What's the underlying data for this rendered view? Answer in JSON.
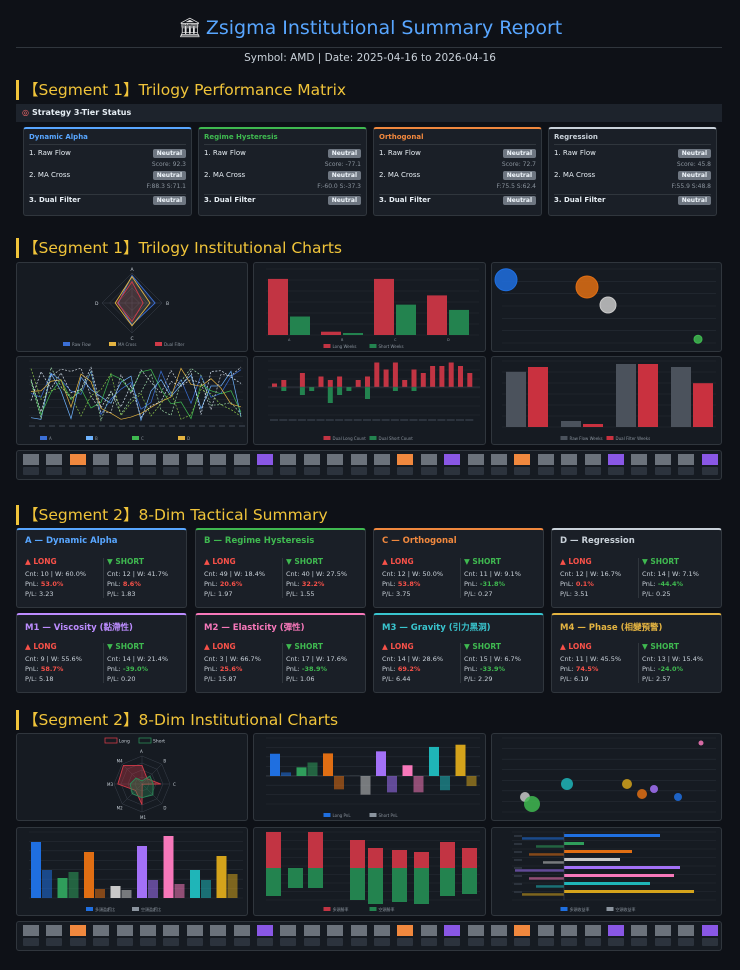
{
  "header": {
    "icon": "bank-building-icon",
    "title": "Zsigma Institutional Summary Report",
    "subtitle": "Symbol: AMD | Date: 2025-04-16 to 2026-04-16"
  },
  "sections": {
    "s1_matrix": "【Segment 1】Trilogy Performance Matrix",
    "s1_charts": "【Segment 1】Trilogy Institutional Charts",
    "s2_summary": "【Segment 2】8-Dim Tactical Summary",
    "s2_charts": "【Segment 2】8-Dim Institutional Charts"
  },
  "strategy_status": {
    "icon": "target-icon",
    "label": "Strategy 3-Tier Status"
  },
  "tier_cards": [
    {
      "name": "Dynamic Alpha",
      "color": "#58a6ff",
      "rows": [
        {
          "label": "1. Raw Flow",
          "badge": "Neutral",
          "sub": "Score: 92.3"
        },
        {
          "label": "2. MA Cross",
          "badge": "Neutral",
          "sub": "F:88.3 S:71.1"
        },
        {
          "label": "3. Dual Filter",
          "badge": "Neutral",
          "sub": ""
        }
      ]
    },
    {
      "name": "Regime Hysteresis",
      "color": "#3fb950",
      "rows": [
        {
          "label": "1. Raw Flow",
          "badge": "Neutral",
          "sub": "Score: -77.1"
        },
        {
          "label": "2. MA Cross",
          "badge": "Neutral",
          "sub": "F:-60.0 S:-37.3"
        },
        {
          "label": "3. Dual Filter",
          "badge": "Neutral",
          "sub": ""
        }
      ]
    },
    {
      "name": "Orthogonal",
      "color": "#f0883e",
      "rows": [
        {
          "label": "1. Raw Flow",
          "badge": "Neutral",
          "sub": "Score: 72.7"
        },
        {
          "label": "2. MA Cross",
          "badge": "Neutral",
          "sub": "F:75.5 S:62.4"
        },
        {
          "label": "3. Dual Filter",
          "badge": "Neutral",
          "sub": ""
        }
      ]
    },
    {
      "name": "Regression",
      "color": "#c9d1d9",
      "rows": [
        {
          "label": "1. Raw Flow",
          "badge": "Neutral",
          "sub": "Score: 45.8"
        },
        {
          "label": "2. MA Cross",
          "badge": "Neutral",
          "sub": "F:55.9 S:48.8"
        },
        {
          "label": "3. Dual Filter",
          "badge": "Neutral",
          "sub": ""
        }
      ]
    }
  ],
  "dim_cards": [
    {
      "name": "A — Dynamic Alpha",
      "color": "#58a6ff",
      "long": {
        "label": "▲ LONG",
        "cnt": "Cnt: 10 | W: 60.0%",
        "pnl": "53.0%",
        "pl": "P/L: 3.23"
      },
      "short": {
        "label": "▼ SHORT",
        "cnt": "Cnt: 12 | W: 41.7%",
        "pnl": "8.6%",
        "pl": "P/L: 1.83"
      }
    },
    {
      "name": "B — Regime Hysteresis",
      "color": "#3fb950",
      "long": {
        "label": "▲ LONG",
        "cnt": "Cnt: 49 | W: 18.4%",
        "pnl": "20.6%",
        "pl": "P/L: 1.97"
      },
      "short": {
        "label": "▼ SHORT",
        "cnt": "Cnt: 40 | W: 27.5%",
        "pnl": "32.2%",
        "pl": "P/L: 1.55"
      }
    },
    {
      "name": "C — Orthogonal",
      "color": "#f0883e",
      "long": {
        "label": "▲ LONG",
        "cnt": "Cnt: 12 | W: 50.0%",
        "pnl": "53.8%",
        "pl": "P/L: 3.75"
      },
      "short": {
        "label": "▼ SHORT",
        "cnt": "Cnt: 11 | W: 9.1%",
        "pnl": "-31.8%",
        "pl": "P/L: 0.27"
      }
    },
    {
      "name": "D — Regression",
      "color": "#c9d1d9",
      "long": {
        "label": "▲ LONG",
        "cnt": "Cnt: 12 | W: 16.7%",
        "pnl": "0.1%",
        "pl": "P/L: 3.51"
      },
      "short": {
        "label": "▼ SHORT",
        "cnt": "Cnt: 14 | W: 7.1%",
        "pnl": "-44.4%",
        "pl": "P/L: 0.25"
      }
    },
    {
      "name": "M1 — Viscosity (黏滯性)",
      "color": "#bc8cff",
      "long": {
        "label": "▲ LONG",
        "cnt": "Cnt: 9 | W: 55.6%",
        "pnl": "58.7%",
        "pl": "P/L: 5.18"
      },
      "short": {
        "label": "▼ SHORT",
        "cnt": "Cnt: 14 | W: 21.4%",
        "pnl": "-39.0%",
        "pl": "P/L: 0.20"
      }
    },
    {
      "name": "M2 — Elasticity (彈性)",
      "color": "#f778ba",
      "long": {
        "label": "▲ LONG",
        "cnt": "Cnt: 3 | W: 66.7%",
        "pnl": "25.6%",
        "pl": "P/L: 15.87"
      },
      "short": {
        "label": "▼ SHORT",
        "cnt": "Cnt: 17 | W: 17.6%",
        "pnl": "-38.9%",
        "pl": "P/L: 1.06"
      }
    },
    {
      "name": "M3 — Gravity (引力黑洞)",
      "color": "#39c5cf",
      "long": {
        "label": "▲ LONG",
        "cnt": "Cnt: 14 | W: 28.6%",
        "pnl": "69.2%",
        "pl": "P/L: 6.44"
      },
      "short": {
        "label": "▼ SHORT",
        "cnt": "Cnt: 15 | W: 6.7%",
        "pnl": "-33.9%",
        "pl": "P/L: 2.29"
      }
    },
    {
      "name": "M4 — Phase (相變預警)",
      "color": "#e3b341",
      "long": {
        "label": "▲ LONG",
        "cnt": "Cnt: 11 | W: 45.5%",
        "pnl": "74.5%",
        "pl": "P/L: 6.19"
      },
      "short": {
        "label": "▼ SHORT",
        "cnt": "Cnt: 13 | W: 15.4%",
        "pnl": "-24.0%",
        "pl": "P/L: 2.57"
      }
    }
  ],
  "chart_data": [
    {
      "type": "radar",
      "id": "s1-radar",
      "axes": [
        "A",
        "B",
        "C",
        "D"
      ],
      "series": [
        {
          "name": "Raw Flow",
          "values": [
            92,
            77,
            73,
            46
          ]
        },
        {
          "name": "MA Cross",
          "values": [
            88,
            60,
            76,
            56
          ]
        },
        {
          "name": "Dual Filter",
          "values": [
            71,
            37,
            62,
            49
          ]
        }
      ]
    },
    {
      "type": "bar",
      "id": "s1-longshort",
      "categories": [
        "A",
        "B",
        "C",
        "D"
      ],
      "series": [
        {
          "name": "Long Weeks",
          "values": [
            8.5,
            0.5,
            8.5,
            6
          ]
        },
        {
          "name": "Short Weeks",
          "values": [
            2.8,
            0.3,
            4.6,
            3.8
          ]
        }
      ]
    },
    {
      "type": "scatter",
      "id": "s1-bubbles",
      "points": [
        {
          "x": 0,
          "y": 17,
          "r": 11
        },
        {
          "x": 1.35,
          "y": 15,
          "r": 11
        },
        {
          "x": 1.7,
          "y": 10,
          "r": 8
        },
        {
          "x": 3.2,
          "y": 0.5,
          "r": 4
        }
      ]
    },
    {
      "type": "line",
      "id": "s1-lines",
      "series_count": 8
    },
    {
      "type": "bar",
      "id": "s1-dual",
      "series": [
        {
          "name": "Dual Long Count"
        },
        {
          "name": "Dual Short Count"
        }
      ]
    },
    {
      "type": "bar",
      "id": "s1-rawdual",
      "categories": [
        "A",
        "B",
        "C",
        "D"
      ],
      "series": [
        {
          "name": "Raw Flow Weeks",
          "values": [
            9.2,
            1,
            10.5,
            10
          ]
        },
        {
          "name": "Dual Filter Weeks",
          "values": [
            10,
            0.5,
            10.5,
            7.3
          ]
        }
      ]
    },
    {
      "type": "radar",
      "id": "s2-radar",
      "axes": [
        "A",
        "B",
        "C",
        "D",
        "M1",
        "M2",
        "M3",
        "M4"
      ],
      "series": [
        {
          "name": "Long",
          "values": [
            5.3,
            2.1,
            5.4,
            0.1,
            5.9,
            2.6,
            6.9,
            7.5
          ]
        },
        {
          "name": "Short",
          "values": [
            0.9,
            3.2,
            3.2,
            4.4,
            3.9,
            3.9,
            3.4,
            2.4
          ]
        }
      ]
    },
    {
      "type": "bar",
      "id": "s2-pnl",
      "categories": [
        "A",
        "B",
        "C",
        "D",
        "M1",
        "M2",
        "M3",
        "M4"
      ],
      "series": [
        {
          "name": "Long PnL",
          "values": [
            53,
            20.6,
            53.8,
            0.1,
            58.7,
            25.6,
            69.2,
            74.5
          ]
        },
        {
          "name": "Short PnL",
          "values": [
            8.6,
            32.2,
            -31.8,
            -44.4,
            -39,
            -38.9,
            -33.9,
            -24
          ]
        }
      ]
    },
    {
      "type": "scatter",
      "id": "s2-bubbles"
    },
    {
      "type": "bar",
      "id": "s2-pl",
      "categories": [
        "A",
        "B",
        "C",
        "D",
        "M1",
        "M2",
        "M3",
        "M4"
      ],
      "series": [
        {
          "name": "多頭盈虧比",
          "values": [
            3.23,
            1.97,
            3.75,
            3.51,
            5.18,
            15.87,
            6.44,
            6.19
          ]
        },
        {
          "name": "空頭盈虧比",
          "values": [
            1.83,
            1.55,
            0.27,
            0.25,
            0.2,
            1.06,
            2.29,
            2.57
          ]
        }
      ]
    },
    {
      "type": "bar",
      "id": "s2-winrate",
      "series": [
        {
          "name": "多頭勝率"
        },
        {
          "name": "空頭勝率"
        }
      ]
    },
    {
      "type": "bar",
      "id": "s2-horizontal",
      "series": [
        {
          "name": "多頭收益率"
        },
        {
          "name": "空頭收益率"
        }
      ]
    }
  ],
  "colors": {
    "accent": "#58a6ff",
    "gold": "#f0c43a",
    "long": "#d03a48",
    "short": "#2a8a57",
    "negative": "#f85149",
    "positive": "#3fb950",
    "neutral_badge": "#6e7681"
  }
}
